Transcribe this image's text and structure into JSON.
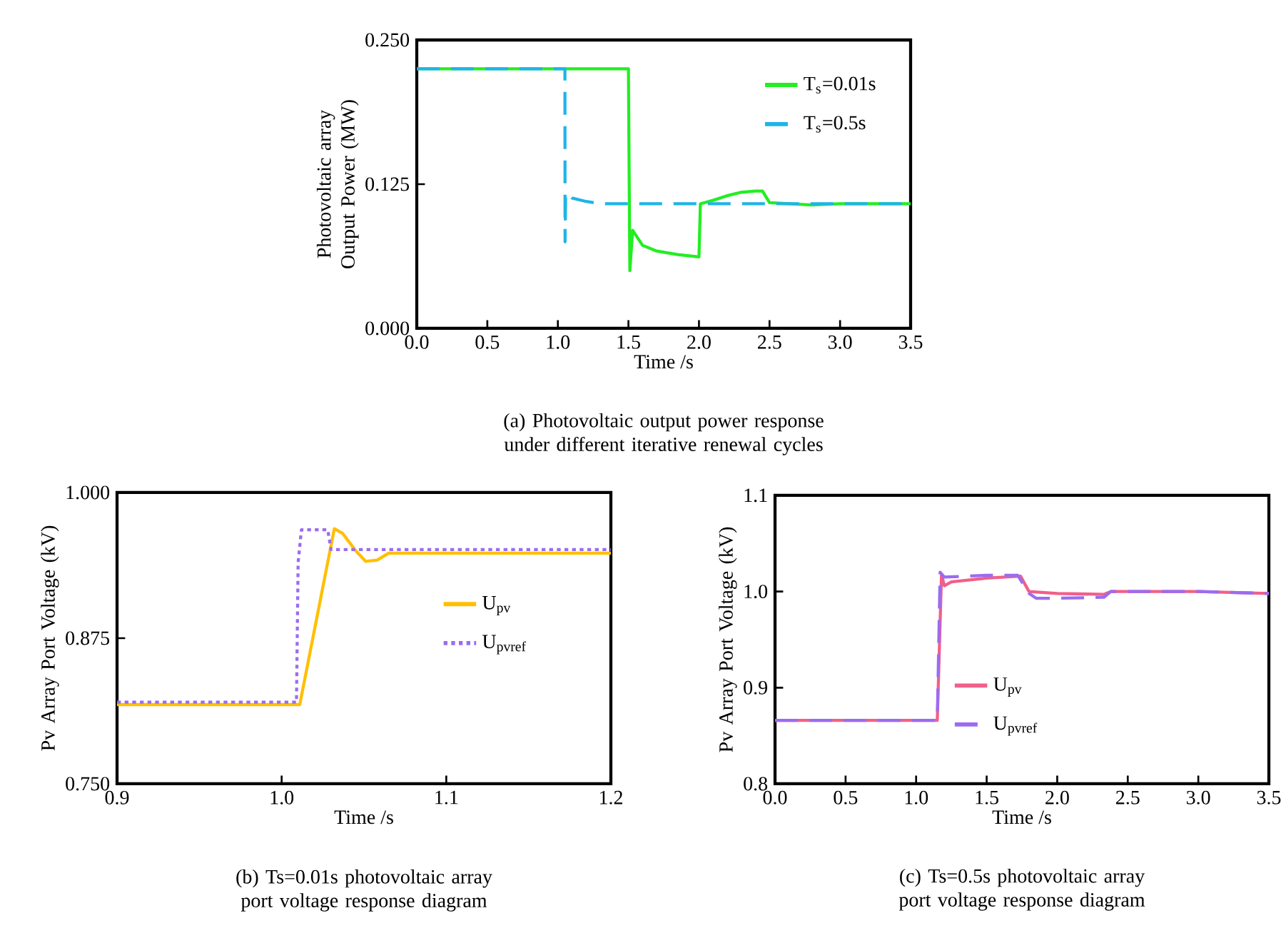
{
  "chart_data": [
    {
      "type": "line",
      "xlabel": "Time /s",
      "ylabel": "Photovoltaic array Output Power (MW)",
      "annotations": [
        "(a) Photovoltaic output power response under different iterative renewal cycles"
      ],
      "xlim": [
        0,
        3.5
      ],
      "ylim": [
        0,
        0.25
      ],
      "xticks": [
        {
          "value": 0,
          "label": "0.0"
        },
        0.5,
        {
          "value": 1,
          "label": "1.0"
        },
        1.5,
        {
          "value": 2,
          "label": "2.0"
        },
        2.5,
        {
          "value": 3,
          "label": "3.0"
        },
        3.5
      ],
      "yticks": [
        {
          "value": 0,
          "label": "0.000"
        },
        {
          "value": 0.125,
          "label": "0.125"
        },
        {
          "value": 0.25,
          "label": "0.250"
        }
      ],
      "legend": "top right",
      "series": [
        {
          "name": "T$_{s}$=0.01s",
          "color": "#22ee22",
          "line_style": "solid",
          "x": [
            0,
            1.5,
            1.51,
            1.53,
            1.6,
            1.7,
            1.85,
            2.0,
            2.01,
            2.1,
            2.2,
            2.3,
            2.4,
            2.45,
            2.5,
            2.8,
            3.0,
            3.5
          ],
          "values": [
            0.225,
            0.225,
            0.05,
            0.085,
            0.072,
            0.067,
            0.064,
            0.062,
            0.108,
            0.111,
            0.115,
            0.118,
            0.119,
            0.119,
            0.109,
            0.107,
            0.108,
            0.108
          ]
        },
        {
          "name": "T$_{s}$=0.5s",
          "color": "#1fb4e8",
          "line_style": "dashed",
          "x": [
            0,
            1.05,
            1.051,
            1.055,
            1.1,
            1.2,
            1.3,
            1.5,
            3.5
          ],
          "values": [
            0.225,
            0.225,
            0.075,
            0.117,
            0.113,
            0.11,
            0.108,
            0.108,
            0.108
          ]
        }
      ]
    },
    {
      "type": "line",
      "xlabel": "Time /s",
      "ylabel": "Pv Array Port Voltage (kV)",
      "annotations": [
        "(b) Ts=0.01s photovoltaic array port voltage response diagram"
      ],
      "xlim": [
        0.9,
        1.2
      ],
      "ylim": [
        0.75,
        1.0
      ],
      "xticks": [
        0.9,
        {
          "value": 1.0,
          "label": "1.0"
        },
        1.1,
        1.2
      ],
      "yticks": [
        {
          "value": 0.75,
          "label": "0.750"
        },
        0.875,
        {
          "value": 1.0,
          "label": "1.000"
        }
      ],
      "legend": "right",
      "series": [
        {
          "name": "U$_{pv}$",
          "color": "#ffbf00",
          "line_style": "solid",
          "x": [
            0.9,
            1.011,
            1.032,
            1.037,
            1.045,
            1.051,
            1.058,
            1.065,
            1.2
          ],
          "values": [
            0.818,
            0.818,
            0.969,
            0.965,
            0.95,
            0.941,
            0.942,
            0.948,
            0.948
          ]
        },
        {
          "name": "U$_{pvref}$",
          "color": "#9b6cf0",
          "line_style": "dotted",
          "x": [
            0.9,
            1.009,
            1.01,
            1.012,
            1.028,
            1.03,
            1.2
          ],
          "values": [
            0.82,
            0.82,
            0.94,
            0.968,
            0.968,
            0.951,
            0.951
          ]
        }
      ]
    },
    {
      "type": "line",
      "xlabel": "Time /s",
      "ylabel": "Pv Array Port Voltage (kV)",
      "annotations": [
        "(c) Ts=0.5s photovoltaic array port voltage response diagram"
      ],
      "xlim": [
        0,
        3.5
      ],
      "ylim": [
        0.8,
        1.1
      ],
      "xticks": [
        {
          "value": 0,
          "label": "0.0"
        },
        0.5,
        {
          "value": 1,
          "label": "1.0"
        },
        1.5,
        {
          "value": 2,
          "label": "2.0"
        },
        2.5,
        {
          "value": 3,
          "label": "3.0"
        },
        3.5
      ],
      "yticks": [
        0.8,
        0.9,
        {
          "value": 1.0,
          "label": "1.0"
        },
        1.1
      ],
      "legend": "bottom",
      "series": [
        {
          "name": "U$_{pv}$",
          "color": "#f0608a",
          "line_style": "solid",
          "x": [
            0,
            1.15,
            1.18,
            1.2,
            1.25,
            1.5,
            1.74,
            1.8,
            2.0,
            2.33,
            2.38,
            3.0,
            3.5
          ],
          "values": [
            0.866,
            0.866,
            1.018,
            1.006,
            1.01,
            1.014,
            1.016,
            1.0,
            0.998,
            0.997,
            1.0,
            1.0,
            0.998
          ]
        },
        {
          "name": "U$_{pvref}$",
          "color": "#9b6cf0",
          "line_style": "dashed",
          "x": [
            0,
            1.15,
            1.17,
            1.2,
            1.5,
            1.72,
            1.8,
            1.85,
            2.0,
            2.33,
            2.38,
            3.0,
            3.5
          ],
          "values": [
            0.866,
            0.866,
            1.02,
            1.015,
            1.017,
            1.017,
            0.998,
            0.993,
            0.993,
            0.994,
            1.0,
            1.0,
            0.998
          ]
        }
      ]
    }
  ]
}
